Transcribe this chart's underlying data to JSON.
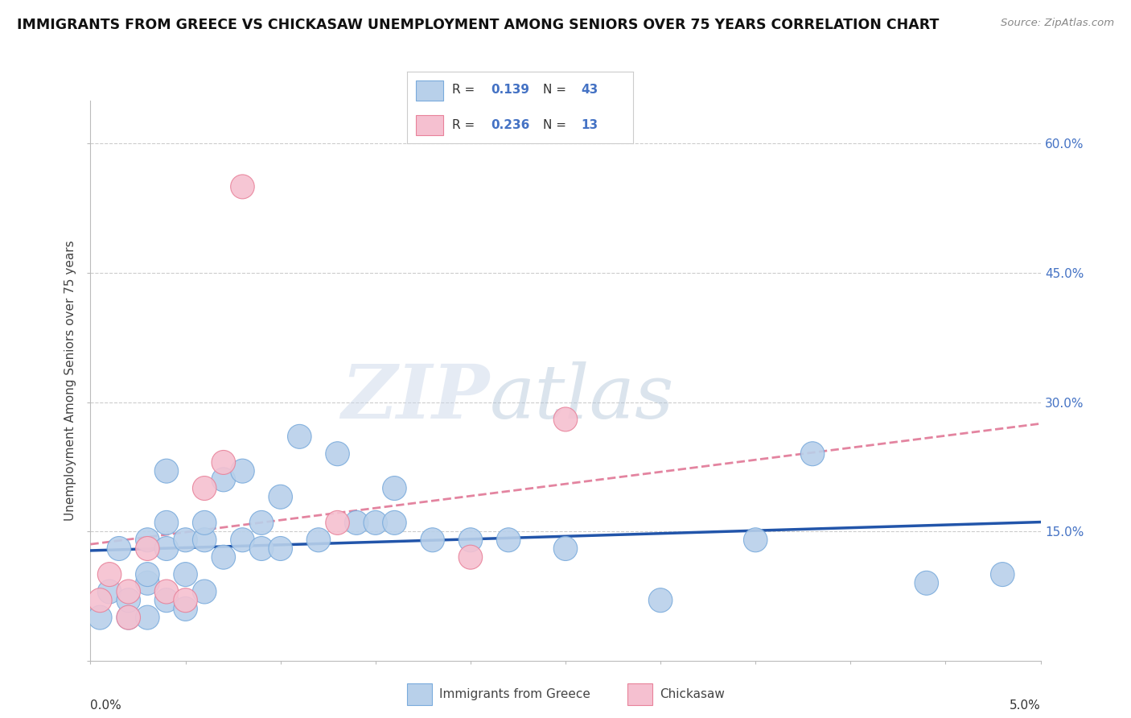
{
  "title": "IMMIGRANTS FROM GREECE VS CHICKASAW UNEMPLOYMENT AMONG SENIORS OVER 75 YEARS CORRELATION CHART",
  "source": "Source: ZipAtlas.com",
  "ylabel": "Unemployment Among Seniors over 75 years",
  "xmin": 0.0,
  "xmax": 0.05,
  "ymin": 0.0,
  "ymax": 0.65,
  "yticks": [
    0.0,
    0.15,
    0.3,
    0.45,
    0.6
  ],
  "ytick_labels": [
    "",
    "15.0%",
    "30.0%",
    "45.0%",
    "60.0%"
  ],
  "legend1_R": "0.139",
  "legend1_N": "43",
  "legend2_R": "0.236",
  "legend2_N": "13",
  "legend1_label": "Immigrants from Greece",
  "legend2_label": "Chickasaw",
  "blue_color": "#b8d0ea",
  "blue_edge": "#7aabdc",
  "pink_color": "#f5c0d0",
  "pink_edge": "#e8829a",
  "blue_line_color": "#2255aa",
  "pink_line_color": "#dd6688",
  "watermark_zip": "ZIP",
  "watermark_atlas": "atlas",
  "blue_x": [
    0.0005,
    0.001,
    0.0015,
    0.002,
    0.002,
    0.003,
    0.003,
    0.003,
    0.003,
    0.004,
    0.004,
    0.004,
    0.004,
    0.005,
    0.005,
    0.005,
    0.006,
    0.006,
    0.006,
    0.007,
    0.007,
    0.008,
    0.008,
    0.009,
    0.009,
    0.01,
    0.01,
    0.011,
    0.012,
    0.013,
    0.014,
    0.015,
    0.016,
    0.016,
    0.018,
    0.02,
    0.022,
    0.025,
    0.03,
    0.035,
    0.038,
    0.044,
    0.048
  ],
  "blue_y": [
    0.05,
    0.08,
    0.13,
    0.05,
    0.07,
    0.05,
    0.09,
    0.1,
    0.14,
    0.07,
    0.13,
    0.16,
    0.22,
    0.06,
    0.1,
    0.14,
    0.08,
    0.14,
    0.16,
    0.12,
    0.21,
    0.14,
    0.22,
    0.13,
    0.16,
    0.13,
    0.19,
    0.26,
    0.14,
    0.24,
    0.16,
    0.16,
    0.16,
    0.2,
    0.14,
    0.14,
    0.14,
    0.13,
    0.07,
    0.14,
    0.24,
    0.09,
    0.1
  ],
  "pink_x": [
    0.0005,
    0.001,
    0.002,
    0.002,
    0.003,
    0.004,
    0.005,
    0.006,
    0.007,
    0.008,
    0.013,
    0.02,
    0.025
  ],
  "pink_y": [
    0.07,
    0.1,
    0.05,
    0.08,
    0.13,
    0.08,
    0.07,
    0.2,
    0.23,
    0.55,
    0.16,
    0.12,
    0.28
  ],
  "pink_trend_x": [
    0.0,
    0.05
  ],
  "pink_trend_y": [
    0.135,
    0.275
  ]
}
